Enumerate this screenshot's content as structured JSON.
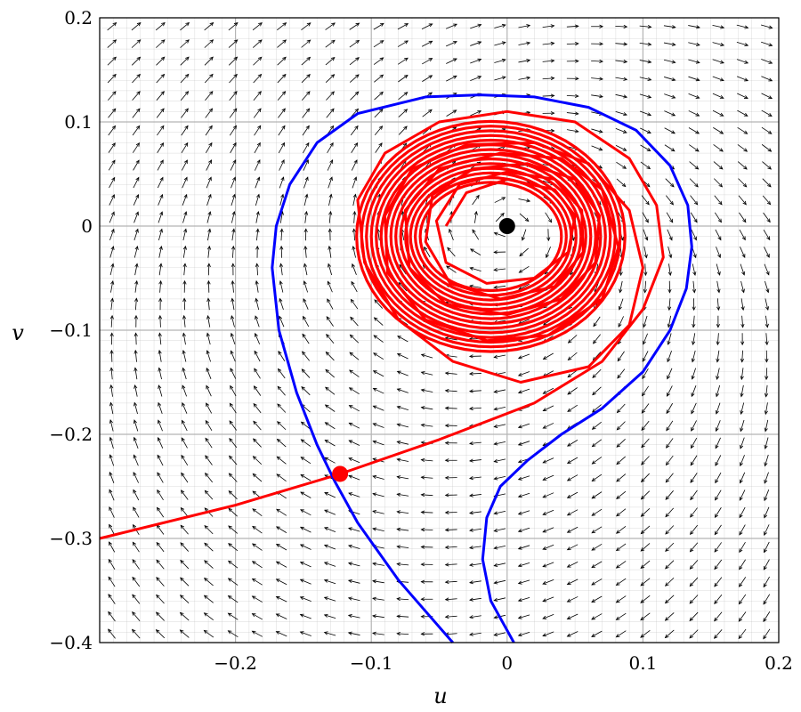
{
  "chart_data": {
    "type": "phase-portrait",
    "title": "",
    "xlabel": "u",
    "ylabel": "v",
    "xlim": [
      -0.3,
      0.2
    ],
    "ylim": [
      -0.4,
      0.2
    ],
    "xticks": [
      -0.2,
      -0.1,
      0,
      0.1,
      0.2
    ],
    "xtick_labels": [
      "−0.2",
      "−0.1",
      "0",
      "0.1",
      "0.2"
    ],
    "yticks": [
      0.2,
      0.1,
      0,
      -0.1,
      -0.2,
      -0.3,
      -0.4
    ],
    "ytick_labels": [
      "0.2",
      "0.1",
      "0",
      "−0.1",
      "−0.2",
      "−0.3",
      "−0.4"
    ],
    "grid": true,
    "colors": {
      "field_arrows": "#000000",
      "separatrix": "#0000ff",
      "trajectory": "#ff0000",
      "focus_point": "#000000",
      "saddle_point": "#ff0000",
      "grid": "#b4b4b4"
    },
    "direction_field": {
      "description": "vector field arrows on a grid across the plane",
      "spiral_center": [
        0,
        0
      ]
    },
    "equilibria": [
      {
        "name": "focus",
        "u": 0,
        "v": 0,
        "color": "#000000"
      },
      {
        "name": "saddle",
        "u": -0.123,
        "v": -0.238,
        "color": "#ff0000"
      }
    ],
    "separatrices": [
      {
        "name": "blue-separatrix-left",
        "color": "#0000ff",
        "points": [
          [
            -0.04,
            -0.4
          ],
          [
            -0.08,
            -0.34
          ],
          [
            -0.11,
            -0.285
          ],
          [
            -0.127,
            -0.245
          ],
          [
            -0.14,
            -0.21
          ],
          [
            -0.155,
            -0.16
          ],
          [
            -0.168,
            -0.1
          ],
          [
            -0.173,
            -0.04
          ],
          [
            -0.17,
            0.0
          ],
          [
            -0.16,
            0.04
          ],
          [
            -0.14,
            0.08
          ],
          [
            -0.11,
            0.108
          ],
          [
            -0.06,
            0.124
          ],
          [
            -0.02,
            0.126
          ],
          [
            0.02,
            0.124
          ],
          [
            0.06,
            0.114
          ],
          [
            0.095,
            0.092
          ],
          [
            0.12,
            0.058
          ],
          [
            0.133,
            0.02
          ],
          [
            0.136,
            -0.02
          ],
          [
            0.132,
            -0.06
          ],
          [
            0.12,
            -0.1
          ],
          [
            0.1,
            -0.14
          ],
          [
            0.07,
            -0.175
          ],
          [
            0.04,
            -0.2
          ],
          [
            0.015,
            -0.225
          ],
          [
            -0.005,
            -0.25
          ],
          [
            -0.015,
            -0.28
          ],
          [
            -0.018,
            -0.32
          ],
          [
            -0.012,
            -0.36
          ],
          [
            0.005,
            -0.4
          ]
        ]
      }
    ],
    "trajectories": [
      {
        "name": "red-orbit-from-saddle",
        "color": "#ff0000",
        "points": [
          [
            -0.3,
            -0.3
          ],
          [
            -0.2,
            -0.268
          ],
          [
            -0.123,
            -0.238
          ],
          [
            -0.05,
            -0.205
          ],
          [
            0.02,
            -0.17
          ],
          [
            0.07,
            -0.13
          ],
          [
            0.1,
            -0.08
          ],
          [
            0.115,
            -0.03
          ],
          [
            0.11,
            0.02
          ],
          [
            0.09,
            0.065
          ],
          [
            0.05,
            0.1
          ],
          [
            0.0,
            0.11
          ],
          [
            -0.05,
            0.1
          ],
          [
            -0.09,
            0.07
          ],
          [
            -0.11,
            0.025
          ],
          [
            -0.105,
            -0.035
          ],
          [
            -0.08,
            -0.09
          ],
          [
            -0.04,
            -0.13
          ],
          [
            0.01,
            -0.15
          ],
          [
            0.06,
            -0.135
          ],
          [
            0.09,
            -0.095
          ],
          [
            0.1,
            -0.04
          ],
          [
            0.09,
            0.015
          ],
          [
            0.06,
            0.06
          ],
          [
            0.02,
            0.08
          ],
          [
            -0.03,
            0.078
          ],
          [
            -0.07,
            0.055
          ],
          [
            -0.09,
            0.01
          ],
          [
            -0.088,
            -0.045
          ],
          [
            -0.06,
            -0.09
          ],
          [
            -0.015,
            -0.11
          ],
          [
            0.03,
            -0.105
          ],
          [
            0.07,
            -0.07
          ],
          [
            0.082,
            -0.02
          ],
          [
            0.07,
            0.035
          ],
          [
            0.04,
            0.065
          ],
          [
            -0.005,
            0.07
          ],
          [
            -0.05,
            0.055
          ],
          [
            -0.075,
            0.015
          ],
          [
            -0.072,
            -0.04
          ],
          [
            -0.045,
            -0.075
          ],
          [
            0.0,
            -0.085
          ],
          [
            0.04,
            -0.07
          ],
          [
            0.065,
            -0.035
          ],
          [
            0.068,
            0.01
          ],
          [
            0.05,
            0.045
          ],
          [
            0.015,
            0.06
          ],
          [
            -0.025,
            0.055
          ],
          [
            -0.055,
            0.03
          ],
          [
            -0.06,
            -0.015
          ],
          [
            -0.042,
            -0.055
          ],
          [
            -0.005,
            -0.07
          ],
          [
            0.035,
            -0.058
          ],
          [
            0.056,
            -0.025
          ],
          [
            0.055,
            0.015
          ],
          [
            0.035,
            0.045
          ],
          [
            0.0,
            0.052
          ],
          [
            -0.035,
            0.04
          ],
          [
            -0.052,
            0.005
          ],
          [
            -0.045,
            -0.035
          ],
          [
            -0.015,
            -0.055
          ],
          [
            0.02,
            -0.05
          ],
          [
            0.045,
            -0.025
          ],
          [
            0.05,
            0.01
          ],
          [
            0.035,
            0.035
          ],
          [
            0.0,
            0.045
          ],
          [
            -0.03,
            0.032
          ],
          [
            -0.045,
            0.0
          ]
        ]
      }
    ]
  }
}
